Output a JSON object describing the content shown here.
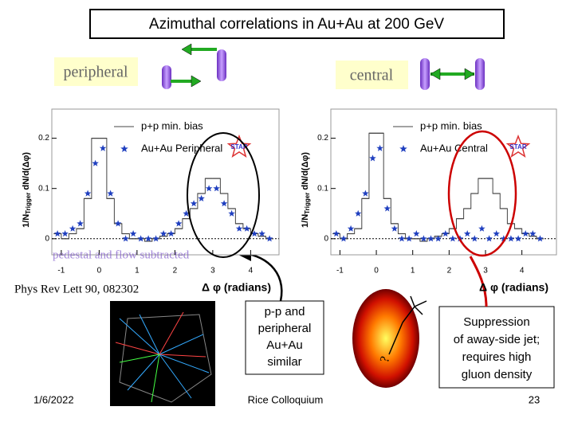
{
  "title": "Azimuthal correlations in Au+Au at 200 GeV",
  "labels": {
    "peripheral": "peripheral",
    "central": "central",
    "pedestal": "pedestal and flow subtracted",
    "reference": "Phys Rev Lett 90, 082302",
    "question": "?"
  },
  "notes": {
    "similar": [
      "p-p and",
      "peripheral",
      "Au+Au",
      "similar"
    ],
    "suppression": [
      "Suppression",
      "of away-side jet;",
      "requires high",
      "gluon density"
    ]
  },
  "footer": {
    "date": "1/6/2022",
    "venue": "Rice Colloquium",
    "page": "23"
  },
  "chart_data": [
    {
      "type": "histogram-step",
      "y_label": [
        "1/N",
        "Trigger",
        " dN/d(Δφ)"
      ],
      "x_label": "Δ φ (radians)",
      "logo": "STAR",
      "xlim": [
        -1.25,
        4.75
      ],
      "ylim": [
        -0.032,
        0.258
      ],
      "xticks": [
        -1,
        0,
        1,
        2,
        3,
        4
      ],
      "yticks": [
        0,
        0.1,
        0.2
      ],
      "x": [
        -1.1,
        -0.9,
        -0.7,
        -0.5,
        -0.3,
        -0.1,
        0.1,
        0.3,
        0.5,
        0.7,
        0.9,
        1.1,
        1.3,
        1.5,
        1.7,
        1.9,
        2.1,
        2.3,
        2.5,
        2.7,
        2.9,
        3.1,
        3.3,
        3.5,
        3.7,
        3.9,
        4.1,
        4.3,
        4.5
      ],
      "series": [
        {
          "name": "p+p min. bias",
          "color": "#444444",
          "values": [
            0.01,
            0.0,
            0.01,
            0.02,
            0.08,
            0.2,
            0.2,
            0.08,
            0.03,
            0.01,
            0.0,
            0.0,
            -0.005,
            0.0,
            0.005,
            0.01,
            0.02,
            0.04,
            0.06,
            0.09,
            0.12,
            0.12,
            0.09,
            0.06,
            0.03,
            0.02,
            0.01,
            0.005,
            0.0
          ]
        },
        {
          "name": "Au+Au Peripheral",
          "color": "#1f3fbf",
          "values": [
            0.01,
            0.01,
            0.02,
            0.03,
            0.09,
            0.15,
            0.18,
            0.09,
            0.03,
            0.0,
            0.01,
            0.0,
            0.0,
            0.0,
            0.01,
            0.01,
            0.03,
            0.05,
            0.07,
            0.08,
            0.1,
            0.1,
            0.07,
            0.05,
            0.02,
            0.02,
            0.01,
            0.01,
            0.0
          ]
        }
      ]
    },
    {
      "type": "histogram-step",
      "y_label": [
        "1/N",
        "Trigger",
        " dN/d(Δφ)"
      ],
      "x_label": "Δ φ (radians)",
      "logo": "STAR",
      "xlim": [
        -1.25,
        4.95
      ],
      "ylim": [
        -0.032,
        0.258
      ],
      "xticks": [
        -1,
        0,
        1,
        2,
        3,
        4
      ],
      "yticks": [
        0,
        0.1,
        0.2
      ],
      "x": [
        -1.1,
        -0.9,
        -0.7,
        -0.5,
        -0.3,
        -0.1,
        0.1,
        0.3,
        0.5,
        0.7,
        0.9,
        1.1,
        1.3,
        1.5,
        1.7,
        1.9,
        2.1,
        2.3,
        2.5,
        2.7,
        2.9,
        3.1,
        3.3,
        3.5,
        3.7,
        3.9,
        4.1,
        4.3,
        4.5
      ],
      "series": [
        {
          "name": "p+p min. bias",
          "color": "#444444",
          "values": [
            0.01,
            0.0,
            0.01,
            0.02,
            0.08,
            0.21,
            0.21,
            0.08,
            0.03,
            0.01,
            0.0,
            0.0,
            -0.005,
            0.0,
            0.005,
            0.01,
            0.02,
            0.04,
            0.06,
            0.09,
            0.12,
            0.12,
            0.09,
            0.06,
            0.03,
            0.02,
            0.01,
            0.005,
            0.0
          ]
        },
        {
          "name": "Au+Au Central",
          "color": "#1f3fbf",
          "values": [
            0.01,
            0.0,
            0.02,
            0.05,
            0.09,
            0.16,
            0.18,
            0.06,
            0.02,
            0.0,
            0.0,
            0.01,
            0.0,
            0.0,
            0.0,
            0.01,
            0.0,
            0.0,
            0.01,
            0.0,
            0.02,
            0.0,
            0.01,
            0.0,
            0.0,
            0.0,
            0.01,
            0.01,
            0.0
          ]
        }
      ]
    }
  ]
}
